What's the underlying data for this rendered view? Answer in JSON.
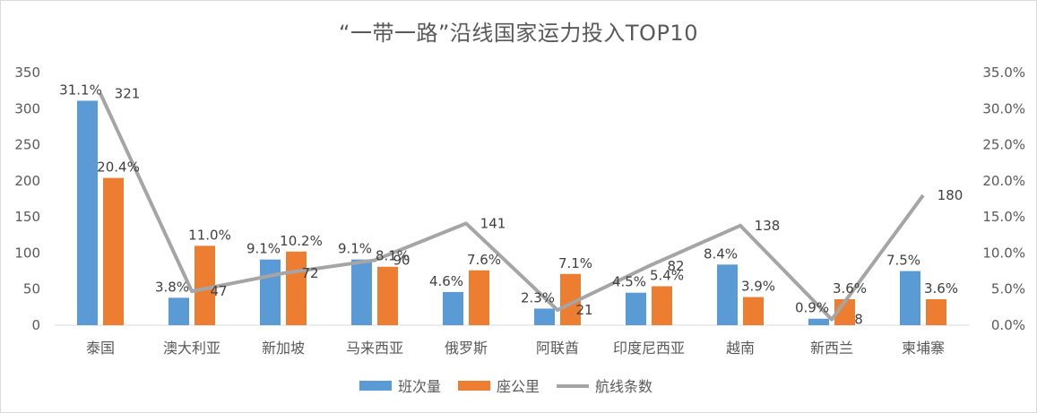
{
  "chart_data": {
    "type": "bar",
    "title": "“一带一路”沿线国家运力投入TOP10",
    "categories": [
      "泰国",
      "澳大利亚",
      "新加坡",
      "马来西亚",
      "俄罗斯",
      "阿联酋",
      "印度尼西亚",
      "越南",
      "新西兰",
      "柬埔寨"
    ],
    "series": [
      {
        "name": "班次量",
        "type": "bar",
        "axis": "right",
        "color": "#5B9BD5",
        "values": [
          0.311,
          0.038,
          0.091,
          0.091,
          0.046,
          0.023,
          0.045,
          0.084,
          0.009,
          0.075
        ],
        "labels": [
          "31.1%",
          "3.8%",
          "9.1%",
          "9.1%",
          "4.6%",
          "2.3%",
          "4.5%",
          "8.4%",
          "0.9%",
          "7.5%"
        ]
      },
      {
        "name": "座公里",
        "type": "bar",
        "axis": "right",
        "color": "#ED7D31",
        "values": [
          0.204,
          0.11,
          0.102,
          0.081,
          0.076,
          0.071,
          0.054,
          0.039,
          0.036,
          0.036
        ],
        "labels": [
          "20.4%",
          "11.0%",
          "10.2%",
          "8.1%",
          "7.6%",
          "7.1%",
          "5.4%",
          "3.9%",
          "3.6%",
          "3.6%"
        ]
      },
      {
        "name": "航线条数",
        "type": "line",
        "axis": "left",
        "color": "#A5A5A5",
        "values": [
          321,
          47,
          72,
          90,
          141,
          21,
          82,
          138,
          8,
          180
        ],
        "labels": [
          "321",
          "47",
          "72",
          "90",
          "141",
          "21",
          "82",
          "138",
          "8",
          "180"
        ]
      }
    ],
    "y_left": {
      "min": 0,
      "max": 350,
      "ticks": [
        "0",
        "50",
        "100",
        "150",
        "200",
        "250",
        "300",
        "350"
      ]
    },
    "y_right": {
      "min": 0,
      "max": 0.35,
      "ticks": [
        "0.0%",
        "5.0%",
        "10.0%",
        "15.0%",
        "20.0%",
        "25.0%",
        "30.0%",
        "35.0%"
      ]
    },
    "grid": false,
    "legend_position": "bottom"
  }
}
